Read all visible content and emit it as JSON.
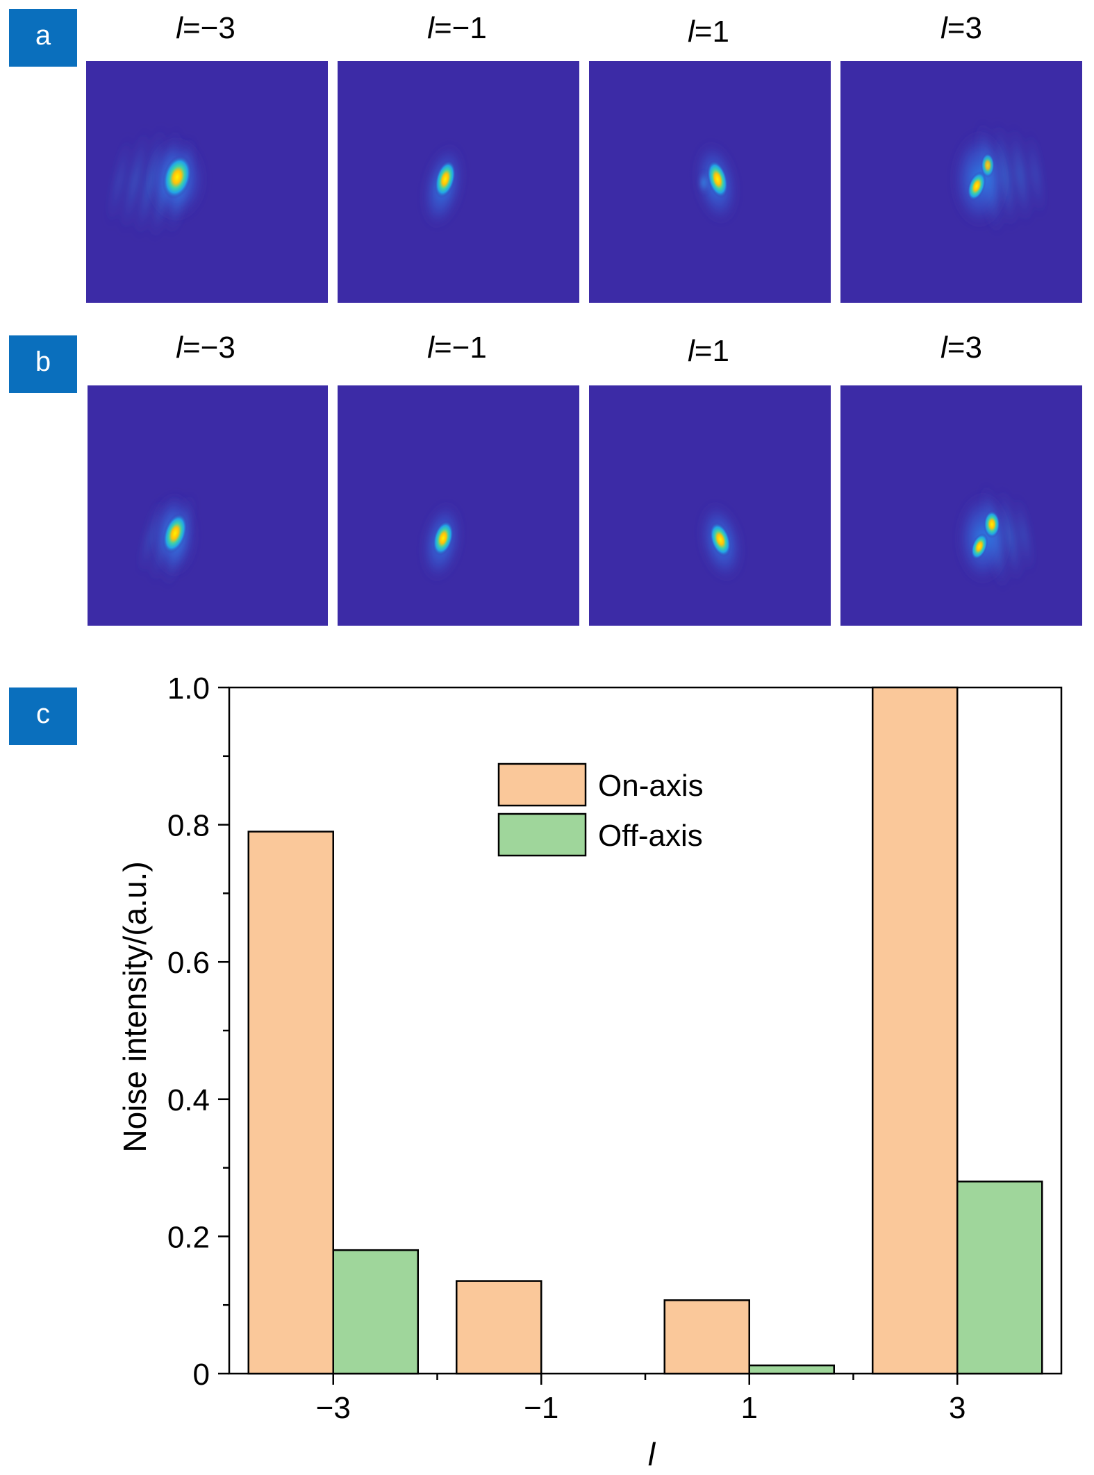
{
  "panels": {
    "a": {
      "label": "a",
      "images": [
        {
          "l": "−3",
          "spot": "bright, with side fringes"
        },
        {
          "l": "−1",
          "spot": "small compact"
        },
        {
          "l": "1",
          "spot": "small compact"
        },
        {
          "l": "3",
          "spot": "double lobe, with side fringes"
        }
      ]
    },
    "b": {
      "label": "b",
      "images": [
        {
          "l": "−3",
          "spot": "bright, faint fringes"
        },
        {
          "l": "−1",
          "spot": "small compact"
        },
        {
          "l": "1",
          "spot": "small compact"
        },
        {
          "l": "3",
          "spot": "double lobe, faint fringes"
        }
      ]
    },
    "c": {
      "label": "c"
    }
  },
  "label_prefix": "l",
  "colors": {
    "panel_label_bg": "#0a6fbd",
    "panel_label_text": "#ffffff",
    "image_bg": "#3c2ba6",
    "on_axis": "#fac89a",
    "off_axis": "#9fd69b",
    "bar_stroke": "#000000"
  },
  "chart_data": {
    "type": "bar",
    "categories": [
      "−3",
      "−1",
      "1",
      "3"
    ],
    "series": [
      {
        "name": "On-axis",
        "values": [
          0.79,
          0.135,
          0.107,
          1.0
        ]
      },
      {
        "name": "Off-axis",
        "values": [
          0.18,
          0.0,
          0.012,
          0.28
        ]
      }
    ],
    "xlabel": "l",
    "ylabel": "Noise intensity/(a.u.)",
    "ylim": [
      0,
      1.0
    ],
    "yticks": [
      "0",
      "0.2",
      "0.4",
      "0.6",
      "0.8",
      "1.0"
    ],
    "legend_position": "upper-center",
    "grid": false
  }
}
